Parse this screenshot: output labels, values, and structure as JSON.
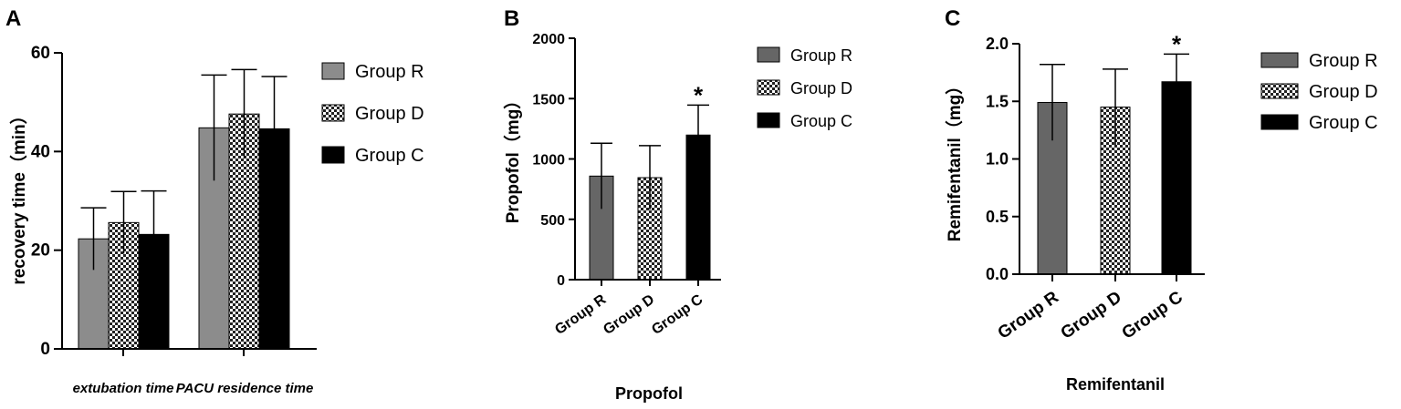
{
  "colors": {
    "group_r_a": "#8c8c8c",
    "group_r": "#666666",
    "group_c": "#000000",
    "checker_light": "#ffffff",
    "checker_dark": "#222222"
  },
  "chart_data": [
    {
      "panel": "A",
      "type": "bar",
      "ylabel": "recovery time（min）",
      "xlabel": "",
      "categories": [
        "extubation time",
        "PACU residence time"
      ],
      "ylim": [
        0,
        60
      ],
      "yticks": [
        "0",
        "20",
        "40",
        "60"
      ],
      "series": [
        {
          "name": "Group R",
          "values": [
            22.3,
            44.8
          ],
          "errors": [
            6.3,
            10.7
          ],
          "pattern": "solid-gray"
        },
        {
          "name": "Group D",
          "values": [
            25.6,
            47.6
          ],
          "errors": [
            6.3,
            9.0
          ],
          "pattern": "checker"
        },
        {
          "name": "Group C",
          "values": [
            23.2,
            44.6
          ],
          "errors": [
            8.8,
            10.6
          ],
          "pattern": "solid-black"
        }
      ],
      "legend": "right"
    },
    {
      "panel": "B",
      "type": "bar",
      "ylabel": "Propofol（mg）",
      "xlabel": "Propofol",
      "categories": [
        "Group R",
        "Group D",
        "Group C"
      ],
      "ylim": [
        0,
        2000
      ],
      "yticks": [
        "0",
        "500",
        "1000",
        "1500",
        "2000"
      ],
      "values": [
        858,
        845,
        1198
      ],
      "errors": [
        272,
        265,
        248
      ],
      "patterns": [
        "solid-gray",
        "checker",
        "solid-black"
      ],
      "annotations": [
        "",
        "",
        "*"
      ],
      "legend_entries": [
        "Group R",
        "Group D",
        "Group C"
      ],
      "legend": "right"
    },
    {
      "panel": "C",
      "type": "bar",
      "ylabel": "Remifentanil（mg）",
      "xlabel": "Remifentanil",
      "categories": [
        "Group R",
        "Group D",
        "Group C"
      ],
      "ylim": [
        0,
        2.0
      ],
      "yticks": [
        "0.0",
        "0.5",
        "1.0",
        "1.5",
        "2.0"
      ],
      "values": [
        1.49,
        1.45,
        1.67
      ],
      "errors": [
        0.33,
        0.33,
        0.24
      ],
      "patterns": [
        "solid-gray",
        "checker",
        "solid-black"
      ],
      "annotations": [
        "",
        "",
        "*"
      ],
      "legend_entries": [
        "Group R",
        "Group D",
        "Group C"
      ],
      "legend": "right"
    }
  ]
}
